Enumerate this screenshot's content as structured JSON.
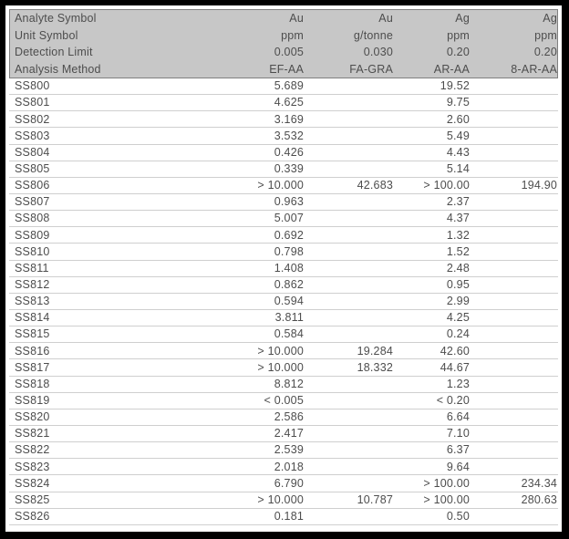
{
  "colors": {
    "frame": "#000000",
    "page_bg": "#ffffff",
    "header_bg": "#c7c7c7",
    "header_border": "#808080",
    "row_line": "#cfcfcf",
    "text": "#4d4d4d"
  },
  "table": {
    "header_rows": [
      {
        "label": "Analyte Symbol",
        "values": [
          "Au",
          "Au",
          "Ag",
          "Ag"
        ]
      },
      {
        "label": "Unit Symbol",
        "values": [
          "ppm",
          "g/tonne",
          "ppm",
          "ppm"
        ]
      },
      {
        "label": "Detection Limit",
        "values": [
          "0.005",
          "0.030",
          "0.20",
          "0.20"
        ]
      },
      {
        "label": "Analysis Method",
        "values": [
          "EF-AA",
          "FA-GRA",
          "AR-AA",
          "8-AR-AA"
        ]
      }
    ],
    "rows": [
      {
        "id": "SS800",
        "values": [
          "5.689",
          "",
          "19.52",
          ""
        ]
      },
      {
        "id": "SS801",
        "values": [
          "4.625",
          "",
          "9.75",
          ""
        ]
      },
      {
        "id": "SS802",
        "values": [
          "3.169",
          "",
          "2.60",
          ""
        ]
      },
      {
        "id": "SS803",
        "values": [
          "3.532",
          "",
          "5.49",
          ""
        ]
      },
      {
        "id": "SS804",
        "values": [
          "0.426",
          "",
          "4.43",
          ""
        ]
      },
      {
        "id": "SS805",
        "values": [
          "0.339",
          "",
          "5.14",
          ""
        ]
      },
      {
        "id": "SS806",
        "values": [
          "> 10.000",
          "42.683",
          "> 100.00",
          "194.90"
        ]
      },
      {
        "id": "SS807",
        "values": [
          "0.963",
          "",
          "2.37",
          ""
        ]
      },
      {
        "id": "SS808",
        "values": [
          "5.007",
          "",
          "4.37",
          ""
        ]
      },
      {
        "id": "SS809",
        "values": [
          "0.692",
          "",
          "1.32",
          ""
        ]
      },
      {
        "id": "SS810",
        "values": [
          "0.798",
          "",
          "1.52",
          ""
        ]
      },
      {
        "id": "SS811",
        "values": [
          "1.408",
          "",
          "2.48",
          ""
        ]
      },
      {
        "id": "SS812",
        "values": [
          "0.862",
          "",
          "0.95",
          ""
        ]
      },
      {
        "id": "SS813",
        "values": [
          "0.594",
          "",
          "2.99",
          ""
        ]
      },
      {
        "id": "SS814",
        "values": [
          "3.811",
          "",
          "4.25",
          ""
        ]
      },
      {
        "id": "SS815",
        "values": [
          "0.584",
          "",
          "0.24",
          ""
        ]
      },
      {
        "id": "SS816",
        "values": [
          "> 10.000",
          "19.284",
          "42.60",
          ""
        ]
      },
      {
        "id": "SS817",
        "values": [
          "> 10.000",
          "18.332",
          "44.67",
          ""
        ]
      },
      {
        "id": "SS818",
        "values": [
          "8.812",
          "",
          "1.23",
          ""
        ]
      },
      {
        "id": "SS819",
        "values": [
          "< 0.005",
          "",
          "< 0.20",
          ""
        ]
      },
      {
        "id": "SS820",
        "values": [
          "2.586",
          "",
          "6.64",
          ""
        ]
      },
      {
        "id": "SS821",
        "values": [
          "2.417",
          "",
          "7.10",
          ""
        ]
      },
      {
        "id": "SS822",
        "values": [
          "2.539",
          "",
          "6.37",
          ""
        ]
      },
      {
        "id": "SS823",
        "values": [
          "2.018",
          "",
          "9.64",
          ""
        ]
      },
      {
        "id": "SS824",
        "values": [
          "6.790",
          "",
          "> 100.00",
          "234.34"
        ]
      },
      {
        "id": "SS825",
        "values": [
          "> 10.000",
          "10.787",
          "> 100.00",
          "280.63"
        ]
      },
      {
        "id": "SS826",
        "values": [
          "0.181",
          "",
          "0.50",
          ""
        ]
      }
    ]
  }
}
